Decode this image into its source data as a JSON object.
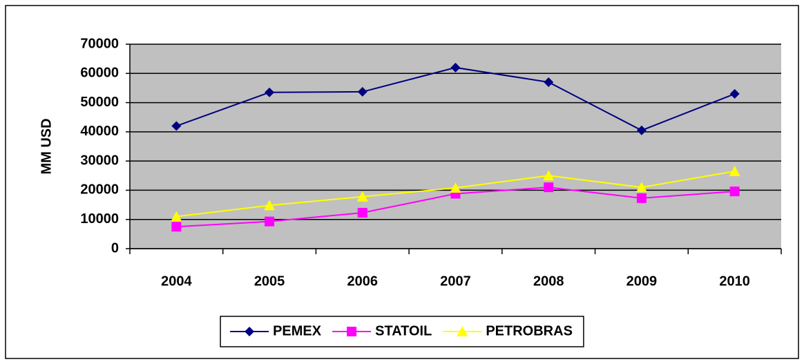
{
  "chart_data": {
    "type": "line",
    "ylabel": "MM USD",
    "categories": [
      "2004",
      "2005",
      "2006",
      "2007",
      "2008",
      "2009",
      "2010"
    ],
    "series": [
      {
        "name": "PEMEX",
        "color": "#000080",
        "marker": "diamond",
        "values": [
          42000,
          53500,
          53700,
          62000,
          57000,
          40500,
          53000
        ]
      },
      {
        "name": "STATOIL",
        "color": "#ff00ff",
        "marker": "square",
        "values": [
          7500,
          9300,
          12300,
          18800,
          21000,
          17300,
          19600
        ]
      },
      {
        "name": "PETROBRAS",
        "color": "#ffff00",
        "marker": "triangle",
        "values": [
          11000,
          14800,
          17800,
          20800,
          25000,
          21000,
          26500
        ]
      }
    ],
    "ylim": [
      0,
      70000
    ],
    "yticks": [
      0,
      10000,
      20000,
      30000,
      40000,
      50000,
      60000,
      70000
    ],
    "grid": true,
    "legend": "bottom",
    "plot_background": "#c0c0c0"
  }
}
